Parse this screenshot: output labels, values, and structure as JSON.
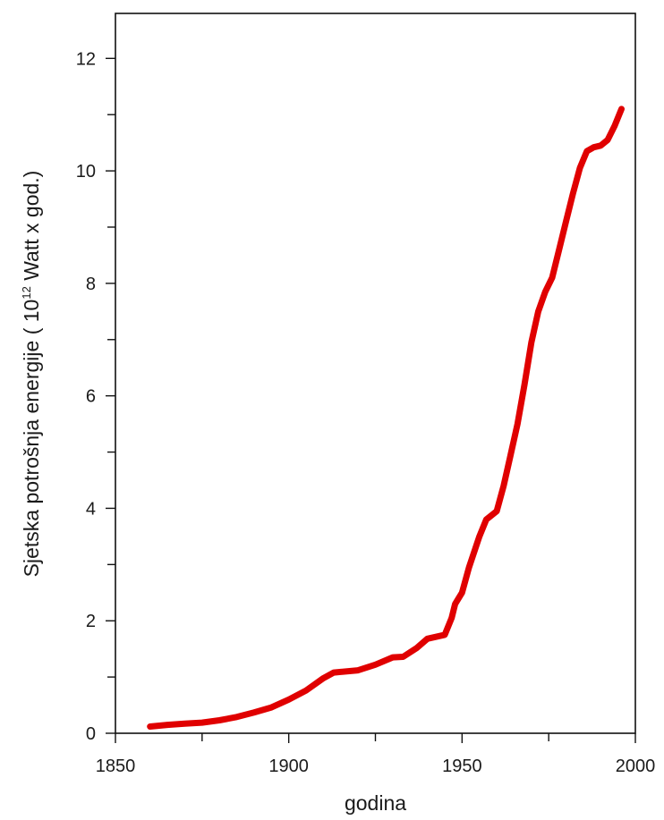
{
  "chart_data": {
    "type": "line",
    "title": "",
    "xlabel": "godina",
    "ylabel": {
      "prefix": "Sjetska potrošnja energije ( 10",
      "exponent": "12",
      "suffix": " Watt x god.)"
    },
    "xlim": [
      1850,
      2000
    ],
    "ylim": [
      0,
      12.8
    ],
    "x_ticks": [
      1850,
      1900,
      1950,
      2000
    ],
    "y_ticks": [
      0,
      2,
      4,
      6,
      8,
      10,
      12
    ],
    "x_minor_step": 25,
    "y_minor_step": 1,
    "grid": false,
    "series": [
      {
        "color": "#e00000",
        "x": [
          1860,
          1865,
          1870,
          1875,
          1880,
          1885,
          1890,
          1895,
          1900,
          1905,
          1910,
          1913,
          1920,
          1925,
          1930,
          1933,
          1937,
          1940,
          1945,
          1947,
          1948,
          1950,
          1952,
          1955,
          1957,
          1960,
          1962,
          1964,
          1966,
          1968,
          1970,
          1972,
          1974,
          1976,
          1978,
          1980,
          1982,
          1984,
          1986,
          1988,
          1990,
          1992,
          1994,
          1996
        ],
        "y": [
          0.12,
          0.15,
          0.17,
          0.19,
          0.23,
          0.29,
          0.37,
          0.46,
          0.6,
          0.76,
          0.98,
          1.08,
          1.12,
          1.22,
          1.35,
          1.36,
          1.52,
          1.68,
          1.75,
          2.05,
          2.3,
          2.5,
          2.95,
          3.5,
          3.8,
          3.95,
          4.4,
          4.95,
          5.5,
          6.2,
          6.95,
          7.5,
          7.85,
          8.1,
          8.6,
          9.1,
          9.6,
          10.05,
          10.35,
          10.42,
          10.45,
          10.55,
          10.8,
          11.1
        ]
      }
    ]
  }
}
